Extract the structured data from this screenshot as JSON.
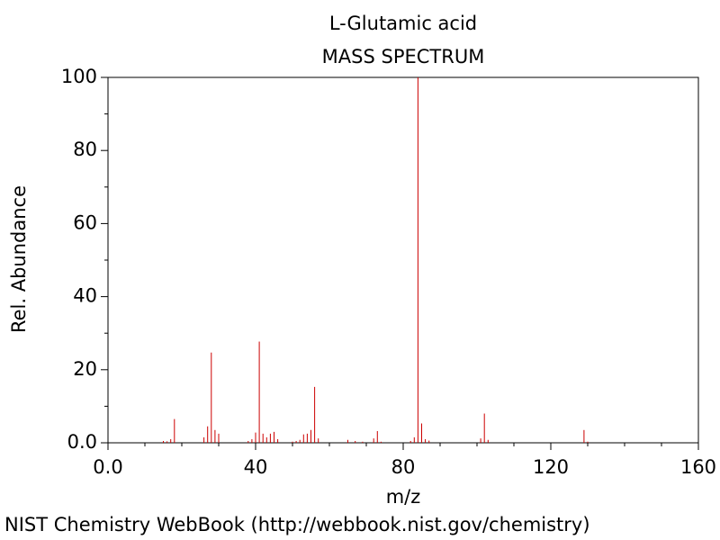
{
  "chart_data": {
    "type": "stem",
    "title": "L-Glutamic acid",
    "subtitle": "MASS SPECTRUM",
    "x_label": "m/z",
    "y_label": "Rel. Abundance",
    "footer": "NIST Chemistry WebBook (http://webbook.nist.gov/chemistry)",
    "color": "#cc0000",
    "x": [
      15,
      16,
      17,
      18,
      26,
      27,
      28,
      29,
      30,
      38,
      39,
      40,
      41,
      42,
      43,
      44,
      45,
      46,
      50,
      51,
      52,
      53,
      54,
      55,
      56,
      57,
      65,
      67,
      69,
      72,
      73,
      74,
      82,
      83,
      84,
      85,
      86,
      87,
      101,
      102,
      103,
      129,
      130
    ],
    "values": [
      0.5,
      0.4,
      1,
      6.5,
      1.5,
      4.5,
      24.7,
      3.5,
      2.5,
      0.5,
      1,
      2.8,
      27.7,
      2.5,
      1.5,
      2.5,
      3,
      1,
      0.3,
      0.5,
      0.8,
      2.3,
      2.5,
      3.5,
      15.3,
      1.2,
      0.8,
      0.5,
      0.3,
      1.2,
      3.2,
      0.3,
      0.5,
      1.5,
      100,
      5.3,
      1,
      0.6,
      1.2,
      8,
      0.8,
      3.5,
      0.3
    ],
    "xlim": [
      0,
      160
    ],
    "ylim": [
      0,
      100
    ],
    "xticks": [
      {
        "value": 0,
        "label": "0.0"
      },
      40,
      80,
      120,
      160
    ],
    "yticks": [
      {
        "value": 0,
        "label": "0.0"
      },
      20,
      40,
      60,
      80,
      100
    ],
    "x_minor_ticks": [
      10,
      20,
      30,
      50,
      60,
      70,
      90,
      100,
      110,
      130,
      140,
      150
    ],
    "y_minor_ticks": [
      10,
      30,
      50,
      70,
      90
    ]
  }
}
